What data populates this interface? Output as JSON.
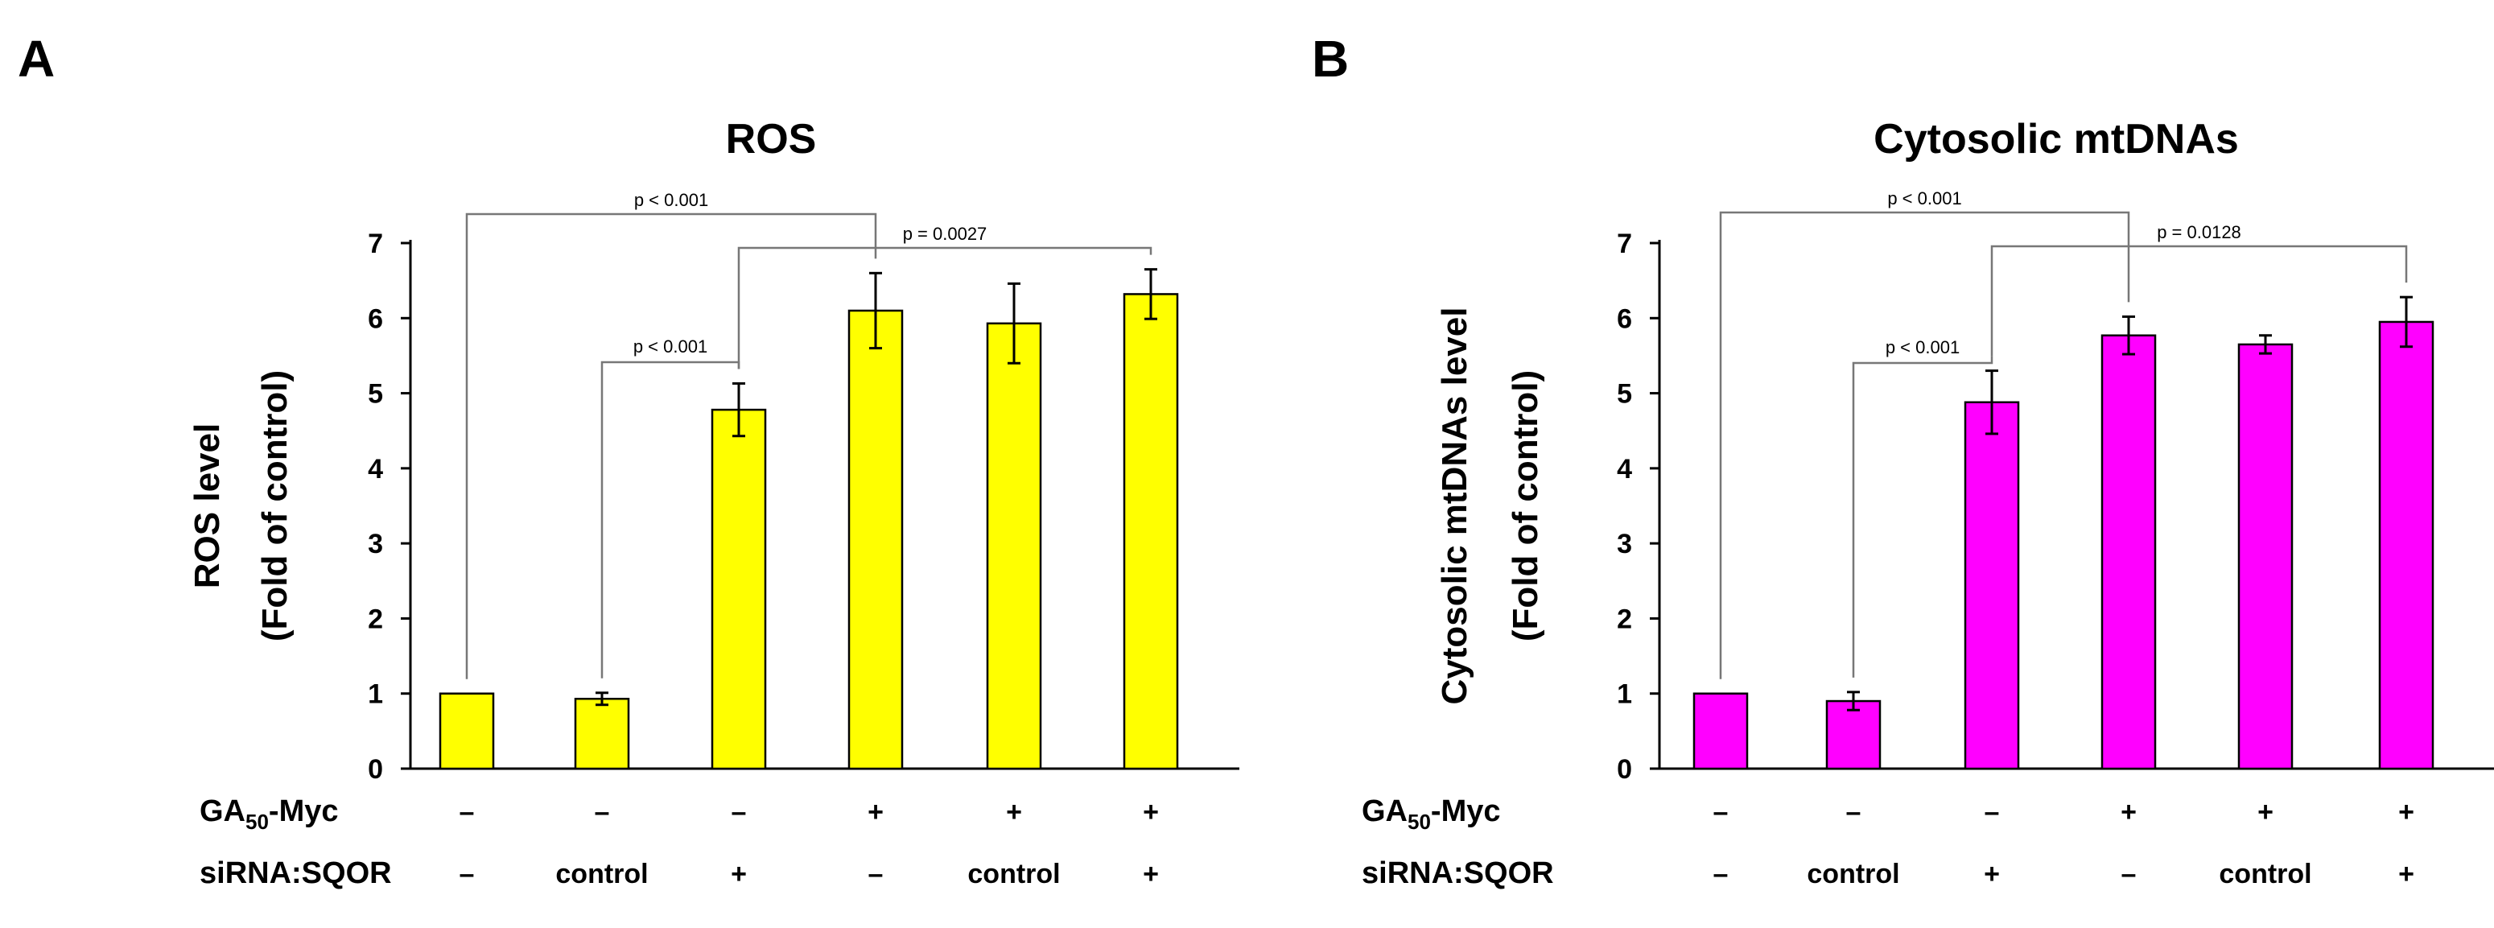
{
  "chart_data": [
    {
      "panel": "A",
      "type": "bar",
      "title": "ROS",
      "ylabel_line1": "ROS level",
      "ylabel_line2": "(Fold of control)",
      "ylim": [
        0,
        7
      ],
      "yticks": [
        "0",
        "1",
        "2",
        "3",
        "4",
        "5",
        "6",
        "7"
      ],
      "bar_color": "#ffff00",
      "values": [
        1.0,
        0.93,
        4.78,
        6.1,
        5.93,
        6.32
      ],
      "errors": [
        0.0,
        0.08,
        0.35,
        0.5,
        0.53,
        0.33
      ],
      "row1_label": "GA",
      "row1_sub": "50",
      "row1_suffix": "-Myc",
      "row1": [
        "–",
        "–",
        "–",
        "+",
        "+",
        "+"
      ],
      "row2_label": "siRNA:SQOR",
      "row2": [
        "–",
        "control",
        "+",
        "–",
        "control",
        "+"
      ],
      "comparisons": [
        {
          "from": 0,
          "to": 3,
          "label": "p < 0.001"
        },
        {
          "from": 2,
          "to": 5,
          "label": "p = 0.0027"
        },
        {
          "from": 1,
          "to": 2,
          "label": "p < 0.001"
        }
      ]
    },
    {
      "panel": "B",
      "type": "bar",
      "title": "Cytosolic mtDNAs",
      "ylabel_line1": "Cytosolic mtDNAs level",
      "ylabel_line2": "(Fold of control)",
      "ylim": [
        0,
        7
      ],
      "yticks": [
        "0",
        "1",
        "2",
        "3",
        "4",
        "5",
        "6",
        "7"
      ],
      "bar_color": "#ff00ff",
      "values": [
        1.0,
        0.9,
        4.88,
        5.77,
        5.65,
        5.95
      ],
      "errors": [
        0.0,
        0.12,
        0.42,
        0.25,
        0.12,
        0.33
      ],
      "row1_label": "GA",
      "row1_sub": "50",
      "row1_suffix": "-Myc",
      "row1": [
        "–",
        "–",
        "–",
        "+",
        "+",
        "+"
      ],
      "row2_label": "siRNA:SQOR",
      "row2": [
        "–",
        "control",
        "+",
        "–",
        "control",
        "+"
      ],
      "comparisons": [
        {
          "from": 0,
          "to": 3,
          "label": "p < 0.001"
        },
        {
          "from": 2,
          "to": 5,
          "label": "p = 0.0128"
        },
        {
          "from": 1,
          "to": 2,
          "label": "p < 0.001"
        }
      ]
    }
  ]
}
